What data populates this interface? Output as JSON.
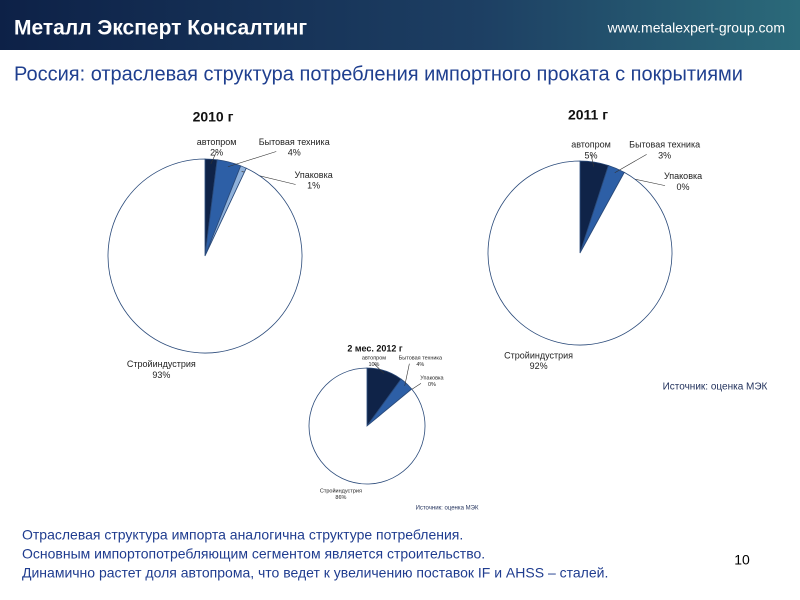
{
  "header": {
    "company": "Металл Эксперт Консалтинг",
    "url": "www.metalexpert-group.com"
  },
  "slide_title": "Россия: отраслевая структура потребления импортного проката с покрытиями",
  "chart_data": [
    {
      "type": "pie",
      "title": "2010 г",
      "categories": [
        "автопром",
        "Бытовая техника",
        "Упаковка",
        "Стройиндустрия"
      ],
      "values": [
        2,
        4,
        1,
        93
      ],
      "value_labels": [
        "2%",
        "4%",
        "1%",
        "93%"
      ],
      "colors": [
        "#0f2348",
        "#2d5fa6",
        "#8fb1da",
        "#ffffff"
      ]
    },
    {
      "type": "pie",
      "title": "2011 г",
      "categories": [
        "автопром",
        "Бытовая техника",
        "Упаковка",
        "Стройиндустрия"
      ],
      "values": [
        5,
        3,
        0,
        92
      ],
      "value_labels": [
        "5%",
        "3%",
        "0%",
        "92%"
      ],
      "colors": [
        "#0f2348",
        "#2d5fa6",
        "#8fb1da",
        "#ffffff"
      ]
    },
    {
      "type": "pie",
      "title": "2 мес. 2012 г",
      "categories": [
        "автопром",
        "Бытовая техника",
        "Упаковка",
        "Стройиндустрия"
      ],
      "values": [
        10,
        4,
        0,
        86
      ],
      "value_labels": [
        "10%",
        "4%",
        "0%",
        "86%"
      ],
      "colors": [
        "#0f2348",
        "#2d5fa6",
        "#8fb1da",
        "#ffffff"
      ]
    }
  ],
  "sources": [
    "Источник: оценка МЭК",
    "Источник: оценка МЭК"
  ],
  "body_lines": [
    "Отраслевая структура  импорта аналогична структуре потребления.",
    "Основным импортопотребляющим сегментом является строительство.",
    "Динамично растет доля автопрома, что  ведет к увеличению  поставок  IF и AHSS – сталей."
  ],
  "page_number": 10
}
